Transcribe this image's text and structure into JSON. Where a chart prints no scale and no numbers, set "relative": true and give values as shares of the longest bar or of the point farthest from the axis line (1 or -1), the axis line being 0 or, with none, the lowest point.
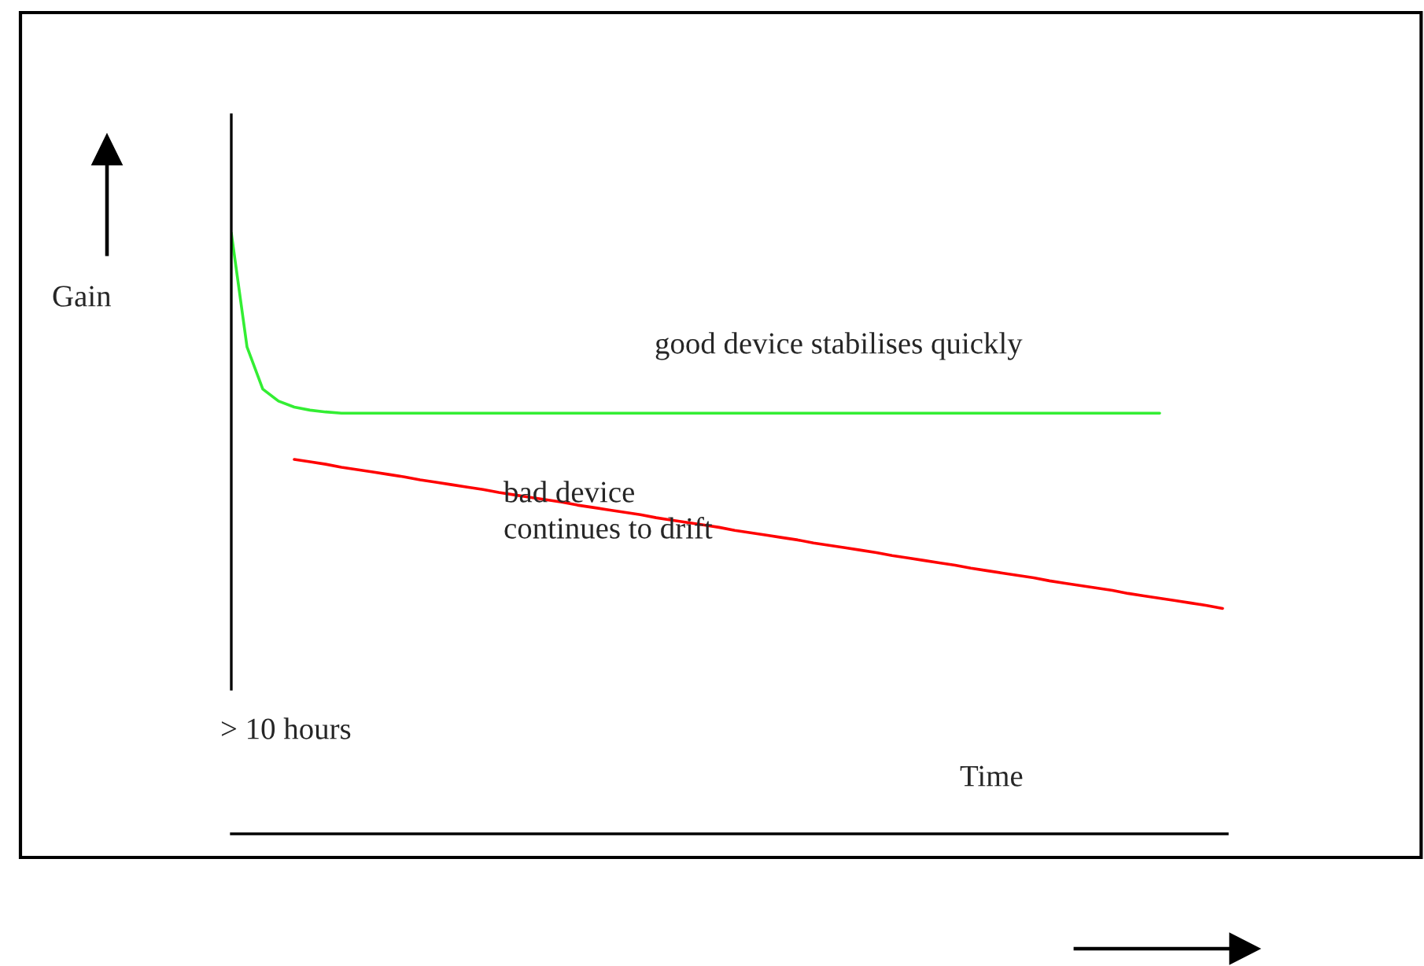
{
  "chart_data": {
    "type": "line",
    "relative": true,
    "ylabel": "Gain",
    "xlabel": "Time",
    "categories": [
      null,
      null,
      null,
      null,
      null,
      null,
      null,
      null,
      null,
      null,
      null,
      null,
      null,
      null,
      null,
      null,
      null,
      null,
      null,
      null,
      null,
      null,
      null,
      null,
      null,
      null,
      null,
      null,
      null,
      null,
      null,
      null,
      null,
      null,
      null,
      null,
      null,
      null,
      null,
      null,
      null,
      null,
      null,
      null,
      null,
      null,
      null,
      null,
      null,
      null,
      null,
      null,
      null,
      null,
      null,
      null,
      null,
      null,
      null,
      null,
      null,
      null,
      null,
      null
    ],
    "series": [
      {
        "color": "#33ee33",
        "values": [
          1.0,
          0.81,
          0.74,
          0.72,
          0.71,
          0.705,
          0.702,
          0.7,
          0.7,
          0.7,
          0.7,
          0.7,
          0.7,
          0.7,
          0.7,
          0.7,
          0.7,
          0.7,
          0.7,
          0.7,
          0.7,
          0.7,
          0.7,
          0.7,
          0.7,
          0.7,
          0.7,
          0.7,
          0.7,
          0.7,
          0.7,
          0.7,
          0.7,
          0.7,
          0.7,
          0.7,
          0.7,
          0.7,
          0.7,
          0.7,
          0.7,
          0.7,
          0.7,
          0.7,
          0.7,
          0.7,
          0.7,
          0.7,
          0.7,
          0.7,
          0.7,
          0.7,
          0.7,
          0.7,
          0.7,
          0.7,
          0.7,
          0.7,
          0.7,
          0.7,
          null,
          null,
          null,
          null
        ]
      },
      {
        "color": "#ff0000",
        "values": [
          null,
          null,
          null,
          null,
          0.623,
          0.619,
          0.615,
          0.61,
          0.606,
          0.602,
          0.598,
          0.594,
          0.589,
          0.585,
          0.581,
          0.577,
          0.573,
          0.568,
          0.564,
          0.56,
          0.556,
          0.552,
          0.547,
          0.543,
          0.539,
          0.535,
          0.531,
          0.526,
          0.522,
          0.518,
          0.514,
          0.51,
          0.505,
          0.501,
          0.497,
          0.493,
          0.489,
          0.484,
          0.48,
          0.476,
          0.472,
          0.468,
          0.463,
          0.459,
          0.455,
          0.451,
          0.447,
          0.442,
          0.438,
          0.434,
          0.43,
          0.426,
          0.421,
          0.417,
          0.413,
          0.409,
          0.405,
          0.4,
          0.396,
          0.392,
          0.388,
          0.384,
          0.38,
          0.375
        ]
      }
    ],
    "annotations": [
      "good device stabilises quickly",
      "bad device\ncontinues to drift",
      "> 10 hours"
    ],
    "legend": false
  }
}
